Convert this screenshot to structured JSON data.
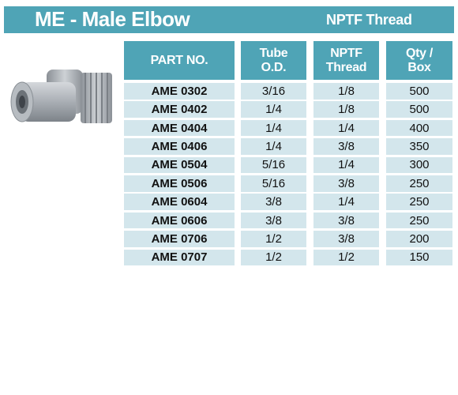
{
  "header": {
    "title": "ME - Male Elbow",
    "subtitle": "NPTF Thread"
  },
  "table": {
    "columns": [
      "PART NO.",
      "Tube O.D.",
      "NPTF Thread",
      "Qty / Box"
    ],
    "rows": [
      [
        "AME 0302",
        "3/16",
        "1/8",
        "500"
      ],
      [
        "AME 0402",
        "1/4",
        "1/8",
        "500"
      ],
      [
        "AME 0404",
        "1/4",
        "1/4",
        "400"
      ],
      [
        "AME 0406",
        "1/4",
        "3/8",
        "350"
      ],
      [
        "AME 0504",
        "5/16",
        "1/4",
        "300"
      ],
      [
        "AME 0506",
        "5/16",
        "3/8",
        "250"
      ],
      [
        "AME 0604",
        "3/8",
        "1/4",
        "250"
      ],
      [
        "AME 0606",
        "3/8",
        "3/8",
        "250"
      ],
      [
        "AME 0706",
        "1/2",
        "3/8",
        "200"
      ],
      [
        "AME 0707",
        "1/2",
        "1/2",
        "150"
      ]
    ]
  }
}
